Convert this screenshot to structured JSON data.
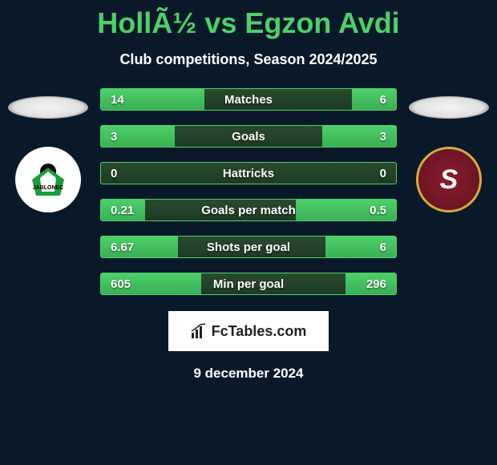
{
  "title": "HollÃ½ vs Egzon Avdi",
  "subtitle": "Club competitions, Season 2024/2025",
  "brand": "FcTables.com",
  "date": "9 december 2024",
  "colors": {
    "page_bg": "#0a1929",
    "accent_green": "#4dd06a",
    "bar_fill_top": "#4dd06a",
    "bar_fill_bottom": "#3ab055",
    "bar_track_top": "#2a4a2e",
    "bar_track_bottom": "#1e3a24",
    "text_white": "#ffffff",
    "brand_bg": "#ffffff",
    "brand_text": "#222222"
  },
  "teams": {
    "left": {
      "name": "FK Jablonec",
      "logo_bg": "#ffffff",
      "logo_accent": "#1a9e3e"
    },
    "right": {
      "name": "AC Sparta Praha",
      "logo_bg": "#8a1c2e",
      "logo_border": "#d4af37"
    }
  },
  "stats": [
    {
      "label": "Matches",
      "left_val": "14",
      "right_val": "6",
      "left_pct": 35,
      "right_pct": 15
    },
    {
      "label": "Goals",
      "left_val": "3",
      "right_val": "3",
      "left_pct": 25,
      "right_pct": 25
    },
    {
      "label": "Hattricks",
      "left_val": "0",
      "right_val": "0",
      "left_pct": 0,
      "right_pct": 0
    },
    {
      "label": "Goals per match",
      "left_val": "0.21",
      "right_val": "0.5",
      "left_pct": 15,
      "right_pct": 34
    },
    {
      "label": "Shots per goal",
      "left_val": "6.67",
      "right_val": "6",
      "left_pct": 26,
      "right_pct": 24
    },
    {
      "label": "Min per goal",
      "left_val": "605",
      "right_val": "296",
      "left_pct": 34,
      "right_pct": 17
    }
  ]
}
